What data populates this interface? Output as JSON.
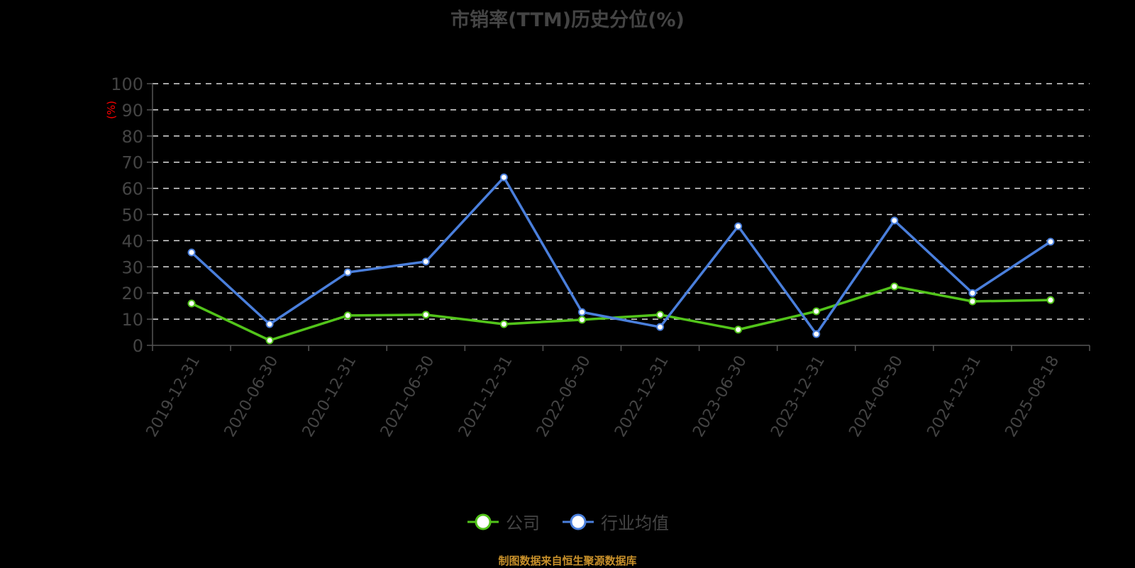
{
  "title": "市销率(TTM)历史分位(%)",
  "yunit": "(%)",
  "source": "制图数据来自恒生聚源数据库",
  "colors": {
    "company": "#52c41a",
    "industry": "#4a7fdc",
    "unit": "#ff0000",
    "text": "#444444",
    "grid": "#dddddd",
    "source": "#c8902a"
  },
  "legend": [
    {
      "label": "公司",
      "color": "#52c41a"
    },
    {
      "label": "行业均值",
      "color": "#4a7fdc"
    }
  ],
  "chart_data": {
    "type": "line",
    "title": "市销率(TTM)历史分位(%)",
    "xlabel": "",
    "ylabel": "(%)",
    "ylim": [
      0,
      100
    ],
    "yticks": [
      0,
      10,
      20,
      30,
      40,
      50,
      60,
      70,
      80,
      90,
      100
    ],
    "grid": true,
    "legend_position": "bottom",
    "categories": [
      "2019-12-31",
      "2020-06-30",
      "2020-12-31",
      "2021-06-30",
      "2021-12-31",
      "2022-06-30",
      "2022-12-31",
      "2023-06-30",
      "2023-12-31",
      "2024-06-30",
      "2024-12-31",
      "2025-08-18"
    ],
    "series": [
      {
        "name": "公司",
        "color": "#52c41a",
        "values": [
          16.0,
          1.9,
          11.4,
          11.7,
          8.1,
          9.8,
          11.7,
          6.0,
          13.0,
          22.5,
          16.8,
          17.3
        ]
      },
      {
        "name": "行业均值",
        "color": "#4a7fdc",
        "values": [
          35.5,
          8.1,
          27.9,
          32.0,
          64.2,
          12.7,
          7.0,
          45.5,
          4.3,
          47.7,
          20.0,
          39.6
        ]
      }
    ]
  }
}
